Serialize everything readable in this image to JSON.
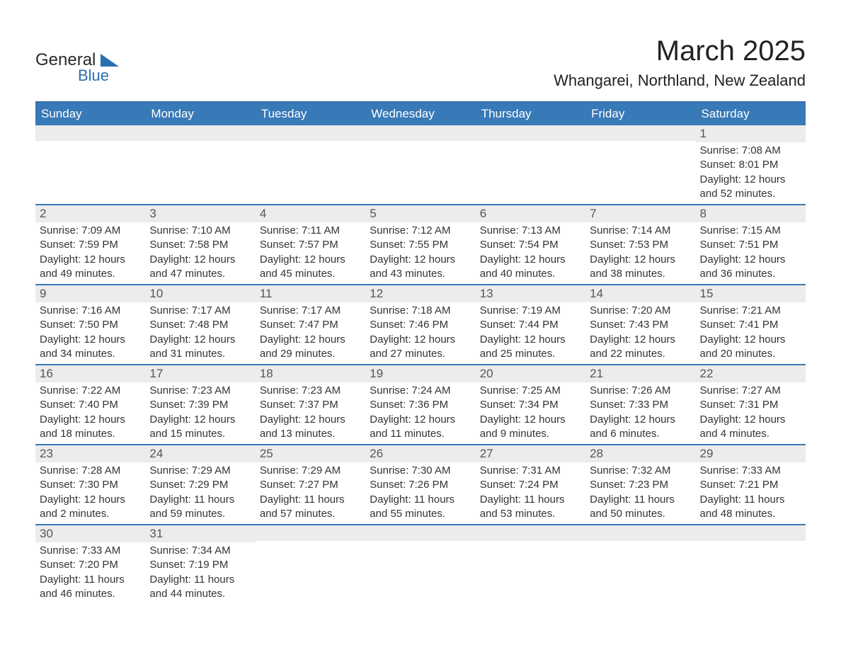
{
  "logo": {
    "line1": "General",
    "line2": "Blue"
  },
  "title": "March 2025",
  "location": "Whangarei, Northland, New Zealand",
  "colors": {
    "header_bg": "#3879b7",
    "header_text": "#ffffff",
    "daynum_bg": "#ececec",
    "row_border": "#3879b7",
    "body_text": "#333333",
    "logo_text": "#2a2a2a",
    "logo_accent": "#2a6fb0"
  },
  "day_headers": [
    "Sunday",
    "Monday",
    "Tuesday",
    "Wednesday",
    "Thursday",
    "Friday",
    "Saturday"
  ],
  "weeks": [
    [
      {
        "num": "",
        "sunrise": "",
        "sunset": "",
        "daylight": ""
      },
      {
        "num": "",
        "sunrise": "",
        "sunset": "",
        "daylight": ""
      },
      {
        "num": "",
        "sunrise": "",
        "sunset": "",
        "daylight": ""
      },
      {
        "num": "",
        "sunrise": "",
        "sunset": "",
        "daylight": ""
      },
      {
        "num": "",
        "sunrise": "",
        "sunset": "",
        "daylight": ""
      },
      {
        "num": "",
        "sunrise": "",
        "sunset": "",
        "daylight": ""
      },
      {
        "num": "1",
        "sunrise": "Sunrise: 7:08 AM",
        "sunset": "Sunset: 8:01 PM",
        "daylight": "Daylight: 12 hours and 52 minutes."
      }
    ],
    [
      {
        "num": "2",
        "sunrise": "Sunrise: 7:09 AM",
        "sunset": "Sunset: 7:59 PM",
        "daylight": "Daylight: 12 hours and 49 minutes."
      },
      {
        "num": "3",
        "sunrise": "Sunrise: 7:10 AM",
        "sunset": "Sunset: 7:58 PM",
        "daylight": "Daylight: 12 hours and 47 minutes."
      },
      {
        "num": "4",
        "sunrise": "Sunrise: 7:11 AM",
        "sunset": "Sunset: 7:57 PM",
        "daylight": "Daylight: 12 hours and 45 minutes."
      },
      {
        "num": "5",
        "sunrise": "Sunrise: 7:12 AM",
        "sunset": "Sunset: 7:55 PM",
        "daylight": "Daylight: 12 hours and 43 minutes."
      },
      {
        "num": "6",
        "sunrise": "Sunrise: 7:13 AM",
        "sunset": "Sunset: 7:54 PM",
        "daylight": "Daylight: 12 hours and 40 minutes."
      },
      {
        "num": "7",
        "sunrise": "Sunrise: 7:14 AM",
        "sunset": "Sunset: 7:53 PM",
        "daylight": "Daylight: 12 hours and 38 minutes."
      },
      {
        "num": "8",
        "sunrise": "Sunrise: 7:15 AM",
        "sunset": "Sunset: 7:51 PM",
        "daylight": "Daylight: 12 hours and 36 minutes."
      }
    ],
    [
      {
        "num": "9",
        "sunrise": "Sunrise: 7:16 AM",
        "sunset": "Sunset: 7:50 PM",
        "daylight": "Daylight: 12 hours and 34 minutes."
      },
      {
        "num": "10",
        "sunrise": "Sunrise: 7:17 AM",
        "sunset": "Sunset: 7:48 PM",
        "daylight": "Daylight: 12 hours and 31 minutes."
      },
      {
        "num": "11",
        "sunrise": "Sunrise: 7:17 AM",
        "sunset": "Sunset: 7:47 PM",
        "daylight": "Daylight: 12 hours and 29 minutes."
      },
      {
        "num": "12",
        "sunrise": "Sunrise: 7:18 AM",
        "sunset": "Sunset: 7:46 PM",
        "daylight": "Daylight: 12 hours and 27 minutes."
      },
      {
        "num": "13",
        "sunrise": "Sunrise: 7:19 AM",
        "sunset": "Sunset: 7:44 PM",
        "daylight": "Daylight: 12 hours and 25 minutes."
      },
      {
        "num": "14",
        "sunrise": "Sunrise: 7:20 AM",
        "sunset": "Sunset: 7:43 PM",
        "daylight": "Daylight: 12 hours and 22 minutes."
      },
      {
        "num": "15",
        "sunrise": "Sunrise: 7:21 AM",
        "sunset": "Sunset: 7:41 PM",
        "daylight": "Daylight: 12 hours and 20 minutes."
      }
    ],
    [
      {
        "num": "16",
        "sunrise": "Sunrise: 7:22 AM",
        "sunset": "Sunset: 7:40 PM",
        "daylight": "Daylight: 12 hours and 18 minutes."
      },
      {
        "num": "17",
        "sunrise": "Sunrise: 7:23 AM",
        "sunset": "Sunset: 7:39 PM",
        "daylight": "Daylight: 12 hours and 15 minutes."
      },
      {
        "num": "18",
        "sunrise": "Sunrise: 7:23 AM",
        "sunset": "Sunset: 7:37 PM",
        "daylight": "Daylight: 12 hours and 13 minutes."
      },
      {
        "num": "19",
        "sunrise": "Sunrise: 7:24 AM",
        "sunset": "Sunset: 7:36 PM",
        "daylight": "Daylight: 12 hours and 11 minutes."
      },
      {
        "num": "20",
        "sunrise": "Sunrise: 7:25 AM",
        "sunset": "Sunset: 7:34 PM",
        "daylight": "Daylight: 12 hours and 9 minutes."
      },
      {
        "num": "21",
        "sunrise": "Sunrise: 7:26 AM",
        "sunset": "Sunset: 7:33 PM",
        "daylight": "Daylight: 12 hours and 6 minutes."
      },
      {
        "num": "22",
        "sunrise": "Sunrise: 7:27 AM",
        "sunset": "Sunset: 7:31 PM",
        "daylight": "Daylight: 12 hours and 4 minutes."
      }
    ],
    [
      {
        "num": "23",
        "sunrise": "Sunrise: 7:28 AM",
        "sunset": "Sunset: 7:30 PM",
        "daylight": "Daylight: 12 hours and 2 minutes."
      },
      {
        "num": "24",
        "sunrise": "Sunrise: 7:29 AM",
        "sunset": "Sunset: 7:29 PM",
        "daylight": "Daylight: 11 hours and 59 minutes."
      },
      {
        "num": "25",
        "sunrise": "Sunrise: 7:29 AM",
        "sunset": "Sunset: 7:27 PM",
        "daylight": "Daylight: 11 hours and 57 minutes."
      },
      {
        "num": "26",
        "sunrise": "Sunrise: 7:30 AM",
        "sunset": "Sunset: 7:26 PM",
        "daylight": "Daylight: 11 hours and 55 minutes."
      },
      {
        "num": "27",
        "sunrise": "Sunrise: 7:31 AM",
        "sunset": "Sunset: 7:24 PM",
        "daylight": "Daylight: 11 hours and 53 minutes."
      },
      {
        "num": "28",
        "sunrise": "Sunrise: 7:32 AM",
        "sunset": "Sunset: 7:23 PM",
        "daylight": "Daylight: 11 hours and 50 minutes."
      },
      {
        "num": "29",
        "sunrise": "Sunrise: 7:33 AM",
        "sunset": "Sunset: 7:21 PM",
        "daylight": "Daylight: 11 hours and 48 minutes."
      }
    ],
    [
      {
        "num": "30",
        "sunrise": "Sunrise: 7:33 AM",
        "sunset": "Sunset: 7:20 PM",
        "daylight": "Daylight: 11 hours and 46 minutes."
      },
      {
        "num": "31",
        "sunrise": "Sunrise: 7:34 AM",
        "sunset": "Sunset: 7:19 PM",
        "daylight": "Daylight: 11 hours and 44 minutes."
      },
      {
        "num": "",
        "sunrise": "",
        "sunset": "",
        "daylight": ""
      },
      {
        "num": "",
        "sunrise": "",
        "sunset": "",
        "daylight": ""
      },
      {
        "num": "",
        "sunrise": "",
        "sunset": "",
        "daylight": ""
      },
      {
        "num": "",
        "sunrise": "",
        "sunset": "",
        "daylight": ""
      },
      {
        "num": "",
        "sunrise": "",
        "sunset": "",
        "daylight": ""
      }
    ]
  ]
}
